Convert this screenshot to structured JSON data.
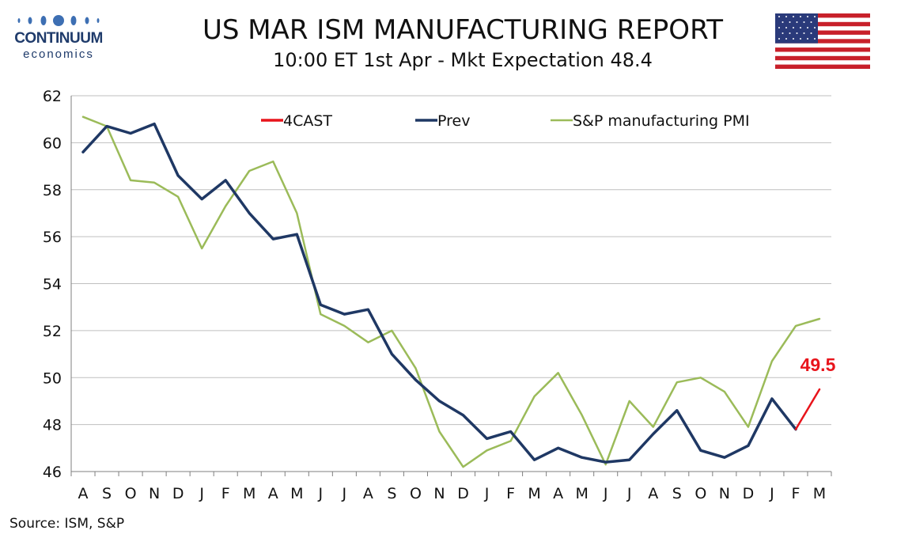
{
  "header": {
    "logo_brand": "CONTINUUM",
    "logo_sub": "economics",
    "title": "US MAR ISM MANUFACTURING REPORT",
    "subtitle": "10:00 ET 1st Apr - Mkt Expectation 48.4",
    "flag_icon": "us-flag-icon"
  },
  "footer": {
    "source": "Source: ISM, S&P"
  },
  "colors": {
    "forecast": "#e8141b",
    "prev": "#1f3864",
    "spmi": "#9bbb59",
    "grid": "#bfbfbf",
    "logo": "#1f3b6b"
  },
  "chart_data": {
    "type": "line",
    "categories": [
      "A",
      "S",
      "O",
      "N",
      "D",
      "J",
      "F",
      "M",
      "A",
      "M",
      "J",
      "J",
      "A",
      "S",
      "O",
      "N",
      "D",
      "J",
      "F",
      "M",
      "A",
      "M",
      "J",
      "J",
      "A",
      "S",
      "O",
      "N",
      "D",
      "J",
      "F",
      "M"
    ],
    "ylim": [
      46,
      62
    ],
    "yticks": [
      46,
      48,
      50,
      52,
      54,
      56,
      58,
      60,
      62
    ],
    "grid": true,
    "legend_position": "top",
    "series": [
      {
        "name": "4CAST",
        "color": "#e8141b",
        "values": [
          null,
          null,
          null,
          null,
          null,
          null,
          null,
          null,
          null,
          null,
          null,
          null,
          null,
          null,
          null,
          null,
          null,
          null,
          null,
          null,
          null,
          null,
          null,
          null,
          null,
          null,
          null,
          null,
          null,
          null,
          47.8,
          49.5
        ]
      },
      {
        "name": "Prev",
        "color": "#1f3864",
        "values": [
          59.6,
          60.7,
          60.4,
          60.8,
          58.6,
          57.6,
          58.4,
          57.0,
          55.9,
          56.1,
          53.1,
          52.7,
          52.9,
          51.0,
          49.9,
          49.0,
          48.4,
          47.4,
          47.7,
          46.5,
          47.0,
          46.6,
          46.4,
          46.5,
          47.6,
          48.6,
          46.9,
          46.6,
          47.1,
          49.1,
          47.8,
          null
        ]
      },
      {
        "name": "S&P manufacturing PMI",
        "color": "#9bbb59",
        "values": [
          61.1,
          60.7,
          58.4,
          58.3,
          57.7,
          55.5,
          57.3,
          58.8,
          59.2,
          57.0,
          52.7,
          52.2,
          51.5,
          52.0,
          50.4,
          47.7,
          46.2,
          46.9,
          47.3,
          49.2,
          50.2,
          48.4,
          46.3,
          49.0,
          47.9,
          49.8,
          50.0,
          49.4,
          47.9,
          50.7,
          52.2,
          52.5
        ]
      }
    ],
    "annotations": [
      {
        "text": "49.5",
        "category_index": 31,
        "value": 49.5,
        "color": "#e8141b"
      }
    ]
  }
}
